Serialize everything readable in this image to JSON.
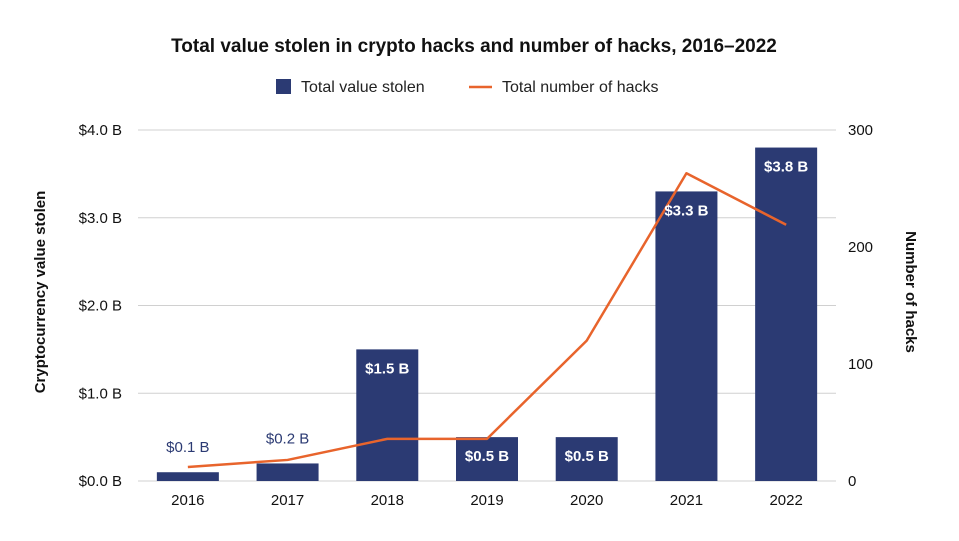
{
  "chart_data": {
    "type": "bar",
    "title": "Total value stolen in crypto hacks and number of hacks, 2016–2022",
    "categories": [
      "2016",
      "2017",
      "2018",
      "2019",
      "2020",
      "2021",
      "2022"
    ],
    "series": [
      {
        "name": "Total value stolen",
        "type": "bar",
        "axis": "left",
        "values": [
          0.1,
          0.2,
          1.5,
          0.5,
          0.5,
          3.3,
          3.8
        ],
        "labels": [
          "$0.1 B",
          "$0.2 B",
          "$1.5 B",
          "$0.5 B",
          "$0.5 B",
          "$3.3 B",
          "$3.8 B"
        ],
        "label_inside": [
          false,
          false,
          true,
          true,
          true,
          true,
          true
        ]
      },
      {
        "name": "Total number of hacks",
        "type": "line",
        "axis": "right",
        "values": [
          12,
          18,
          36,
          36,
          120,
          263,
          219
        ]
      }
    ],
    "ylabel": "Cryptocurrency value stolen",
    "y2label": "Number of hacks",
    "ylim": [
      0,
      4.0
    ],
    "yticks": [
      0,
      1,
      2,
      3,
      4
    ],
    "ytick_labels": [
      "$0.0 B",
      "$1.0 B",
      "$2.0 B",
      "$3.0 B",
      "$4.0 B"
    ],
    "y2lim": [
      0,
      300
    ],
    "y2ticks": [
      0,
      100,
      200,
      300
    ],
    "y2tick_labels": [
      "0",
      "100",
      "200",
      "300"
    ],
    "grid": true,
    "legend_position": "top-center",
    "colors": {
      "bar": "#2b3a73",
      "line": "#e8642c",
      "grid": "#d0d0d0",
      "bar_label_outside": "#2b3a73"
    }
  }
}
